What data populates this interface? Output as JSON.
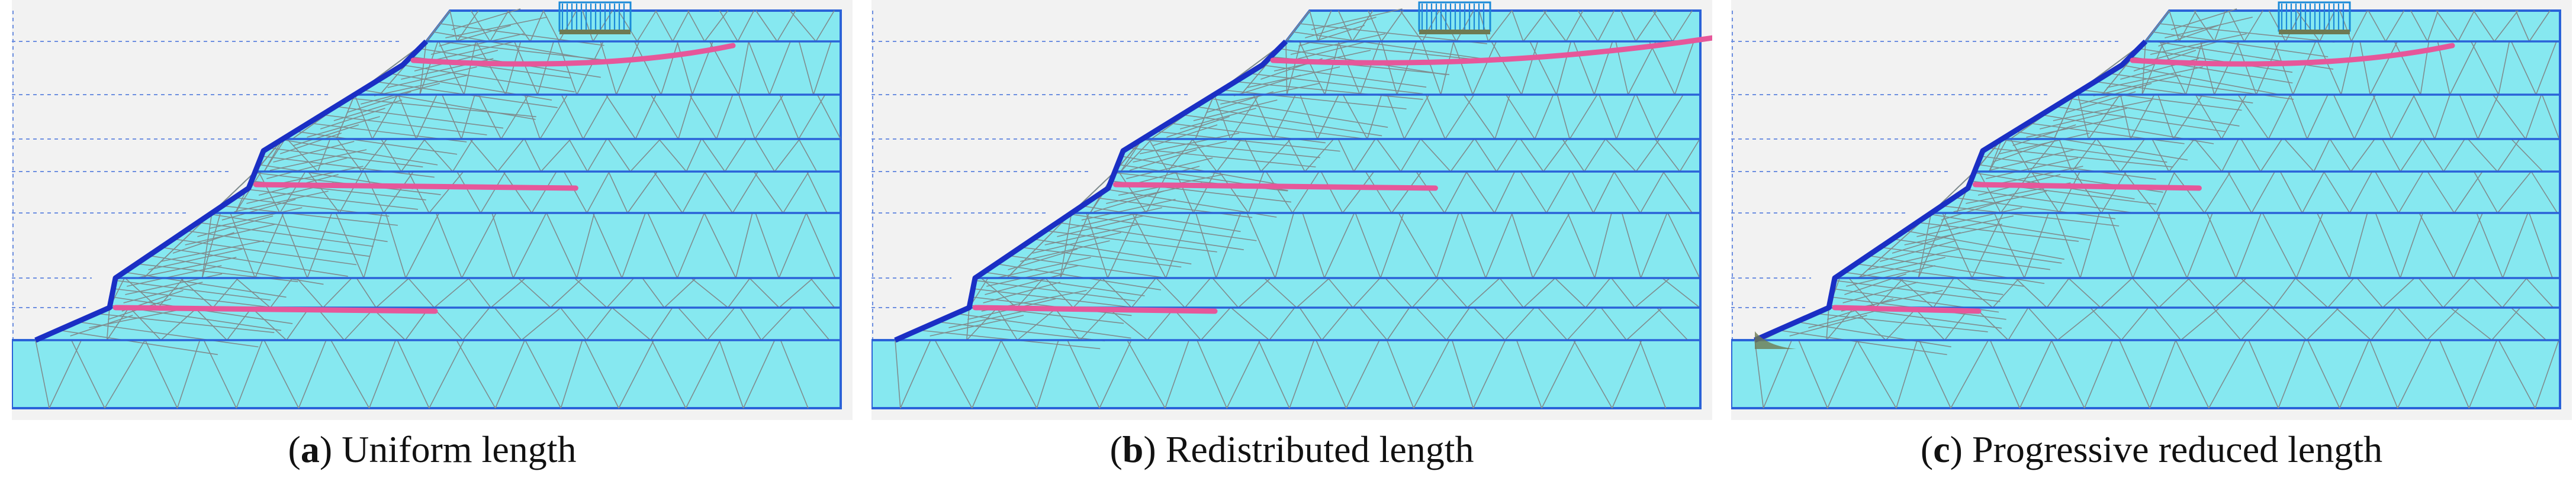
{
  "colors": {
    "soil": "#86e8f0",
    "mesh": "#7f8c8e",
    "outline": "#2a62d8",
    "facing": "#1a2fc4",
    "nail": "#e6579a",
    "load": "#1a8ad8",
    "background": "#f2f2f2",
    "deformed": "#6e7a53"
  },
  "panels": [
    {
      "id": "a",
      "letter": "a",
      "title": "Uniform length",
      "nails": [
        {
          "row": "upper",
          "length": 1.0
        },
        {
          "row": "middle",
          "length": 1.0
        },
        {
          "row": "lower",
          "length": 1.0
        }
      ]
    },
    {
      "id": "b",
      "letter": "b",
      "title": "Redistributed length",
      "nails": [
        {
          "row": "upper",
          "length": 1.4
        },
        {
          "row": "middle",
          "length": 1.0
        },
        {
          "row": "lower",
          "length": 0.75
        }
      ]
    },
    {
      "id": "c",
      "letter": "c",
      "title": "Progressive reduced length",
      "nails": [
        {
          "row": "upper",
          "length": 1.0
        },
        {
          "row": "middle",
          "length": 0.7
        },
        {
          "row": "lower",
          "length": 0.45
        }
      ]
    }
  ]
}
